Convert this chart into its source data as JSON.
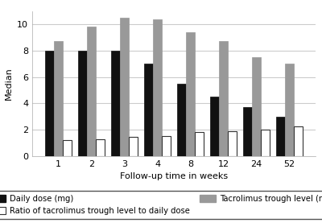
{
  "weeks": [
    1,
    2,
    3,
    4,
    8,
    12,
    24,
    52
  ],
  "daily_dose": [
    8.0,
    8.0,
    8.0,
    7.0,
    5.5,
    4.5,
    3.75,
    3.0
  ],
  "trough_level": [
    8.7,
    9.85,
    10.5,
    10.35,
    9.4,
    8.7,
    7.5,
    7.0
  ],
  "ratio": [
    1.2,
    1.25,
    1.45,
    1.5,
    1.85,
    1.9,
    2.0,
    2.25
  ],
  "colors": {
    "daily_dose": "#111111",
    "trough_level": "#999999",
    "ratio": "#ffffff"
  },
  "ylabel": "Median",
  "xlabel": "Follow-up time in weeks",
  "ylim": [
    0,
    11
  ],
  "yticks": [
    0,
    2,
    4,
    6,
    8,
    10
  ],
  "legend_labels": [
    "Daily dose (mg)",
    "Tacrolimus trough level (ng/ml)",
    "Ratio of tacrolimus trough level to daily dose"
  ],
  "background_color": "#ffffff",
  "plot_bg_color": "#ffffff",
  "grid_color": "#cccccc",
  "bar_edge_color": "#333333"
}
